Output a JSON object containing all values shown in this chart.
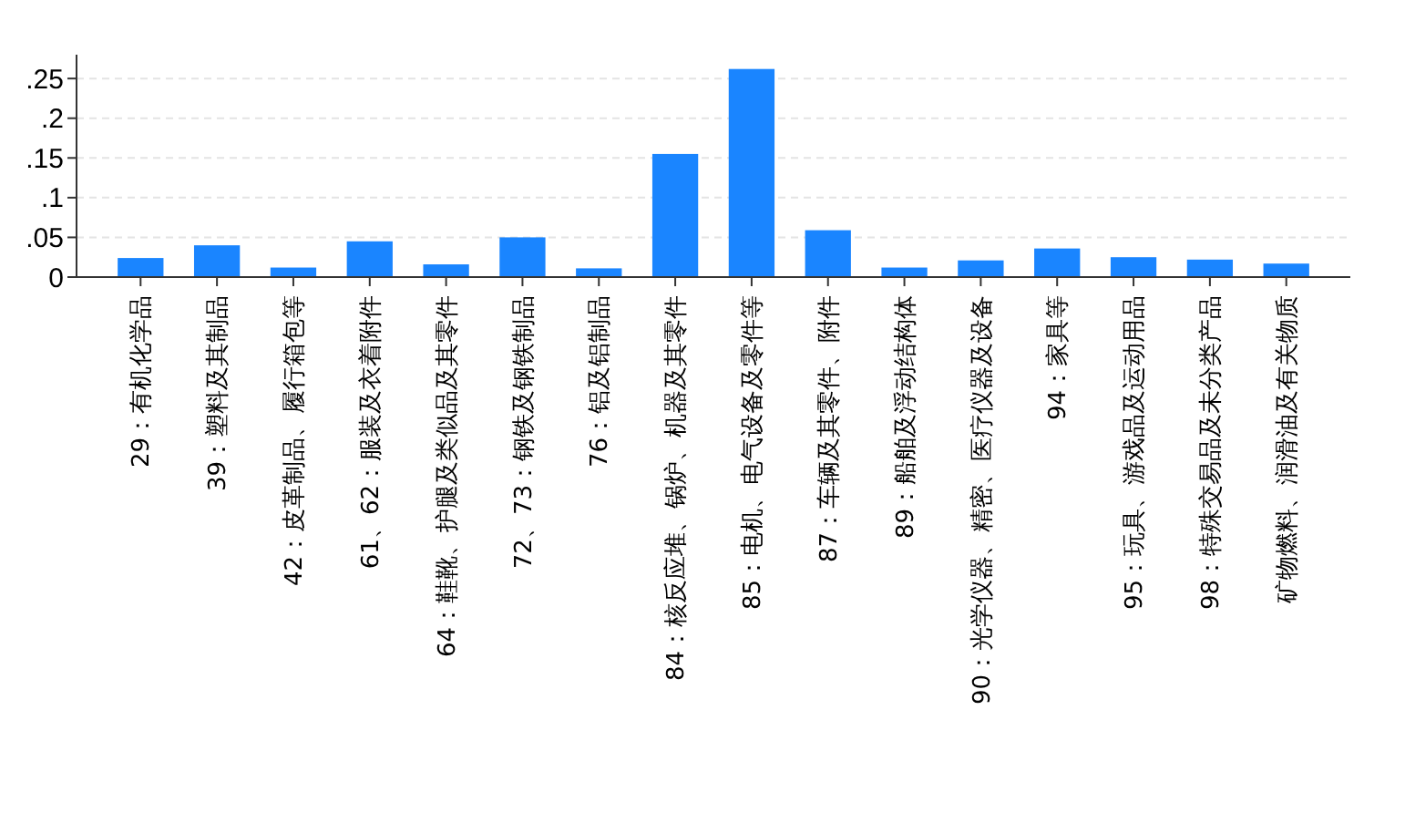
{
  "chart_data": {
    "type": "bar",
    "categories": [
      "29：有机化学品",
      "39：塑料及其制品",
      "42：皮革制品、履行箱包等",
      "61、62：服装及衣着附件",
      "64：鞋靴、护腿及类似品及其零件",
      "72、73：钢铁及钢铁制品",
      "76：铝及铝制品",
      "84：核反应堆、锅炉、机器及其零件",
      "85：电机、电气设备及零件等",
      "87：车辆及其零件、附件",
      "89：船舶及浮动结构体",
      "90：光学仪器、精密、医疗仪器及设备",
      "94：家具等",
      "95：玩具、游戏品及运动用品",
      "98：特殊交易品及未分类产品",
      "矿物燃料、润滑油及有关物质"
    ],
    "values": [
      0.024,
      0.04,
      0.012,
      0.045,
      0.016,
      0.05,
      0.011,
      0.155,
      0.262,
      0.059,
      0.012,
      0.021,
      0.036,
      0.025,
      0.022,
      0.017
    ],
    "color": "#1a85ff",
    "ylim": [
      0,
      0.28
    ],
    "yticks": [
      0,
      {
        "value": 0.05,
        "label": ".05"
      },
      {
        "value": 0.1,
        "label": ".1"
      },
      {
        "value": 0.15,
        "label": ".15"
      },
      {
        "value": 0.2,
        "label": ".2"
      },
      {
        "value": 0.25,
        "label": ".25"
      }
    ],
    "grid": "y"
  }
}
